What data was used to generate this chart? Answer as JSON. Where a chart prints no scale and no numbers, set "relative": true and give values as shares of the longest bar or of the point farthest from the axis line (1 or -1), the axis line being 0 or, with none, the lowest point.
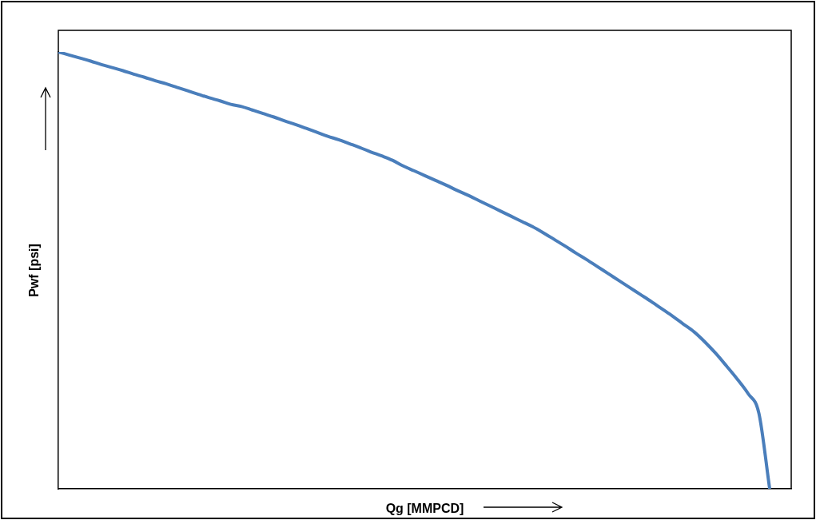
{
  "chart_data": {
    "type": "line",
    "xlabel": "Qg [MMPCD]",
    "ylabel": "Pwf [psi]",
    "relative": true,
    "color": "#4a7ebb",
    "categories": [
      null,
      null,
      null,
      null,
      null,
      null,
      null,
      null,
      null,
      null,
      null,
      null,
      null,
      null,
      null,
      null,
      null,
      null,
      null,
      null,
      null,
      null,
      null,
      null,
      null,
      null,
      null,
      null,
      null,
      null,
      null,
      null,
      null,
      null,
      null,
      null,
      null,
      null,
      null,
      null,
      null,
      null,
      null,
      null,
      null,
      null,
      null,
      null,
      null,
      null,
      null,
      null,
      null,
      null,
      null,
      null,
      null,
      null,
      null,
      null,
      null,
      null,
      null,
      null,
      null,
      null,
      null,
      null,
      null
    ],
    "values": [
      1.0,
      0.993,
      0.986,
      0.979,
      0.971,
      0.964,
      0.957,
      0.949,
      0.942,
      0.934,
      0.927,
      0.919,
      0.911,
      0.903,
      0.895,
      0.888,
      0.88,
      0.875,
      0.867,
      0.859,
      0.851,
      0.842,
      0.834,
      0.825,
      0.816,
      0.807,
      0.799,
      0.79,
      0.781,
      0.771,
      0.762,
      0.752,
      0.739,
      0.728,
      0.717,
      0.706,
      0.695,
      0.683,
      0.672,
      0.66,
      0.648,
      0.636,
      0.624,
      0.612,
      0.6,
      0.586,
      0.571,
      0.556,
      0.54,
      0.525,
      0.509,
      0.493,
      0.477,
      0.461,
      0.445,
      0.429,
      0.412,
      0.395,
      0.377,
      0.359,
      0.336,
      0.31,
      0.281,
      0.251,
      0.218,
      0.173,
      0,
      null,
      null
    ]
  }
}
